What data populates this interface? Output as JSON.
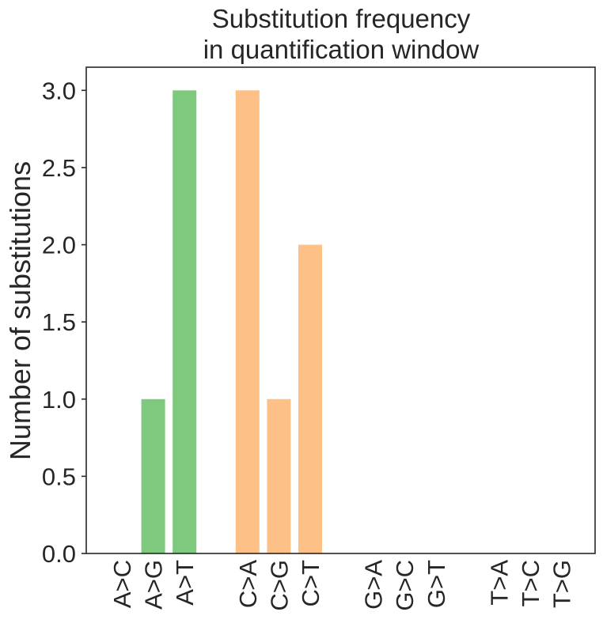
{
  "chart_data": {
    "type": "bar",
    "title_lines": [
      "Substitution frequency",
      "in quantification window"
    ],
    "xlabel": "",
    "ylabel": "Number of substitutions",
    "ylim": [
      0,
      3.15
    ],
    "yticks": [
      "0.0",
      "0.5",
      "1.0",
      "1.5",
      "2.0",
      "2.5",
      "3.0"
    ],
    "ytick_values": [
      0,
      0.5,
      1.0,
      1.5,
      2.0,
      2.5,
      3.0
    ],
    "grid": false,
    "bars": [
      {
        "category": "A>C",
        "value": 0,
        "group": "A",
        "color": "#7fc97f"
      },
      {
        "category": "A>G",
        "value": 1,
        "group": "A",
        "color": "#7fc97f"
      },
      {
        "category": "A>T",
        "value": 3,
        "group": "A",
        "color": "#7fc97f"
      },
      {
        "category": "C>A",
        "value": 3,
        "group": "C",
        "color": "#fdc086"
      },
      {
        "category": "C>G",
        "value": 1,
        "group": "C",
        "color": "#fdc086"
      },
      {
        "category": "C>T",
        "value": 2,
        "group": "C",
        "color": "#fdc086"
      },
      {
        "category": "G>A",
        "value": 0,
        "group": "G",
        "color": "#beaed4"
      },
      {
        "category": "G>C",
        "value": 0,
        "group": "G",
        "color": "#beaed4"
      },
      {
        "category": "G>T",
        "value": 0,
        "group": "G",
        "color": "#beaed4"
      },
      {
        "category": "T>A",
        "value": 0,
        "group": "T",
        "color": "#ffff99"
      },
      {
        "category": "T>C",
        "value": 0,
        "group": "T",
        "color": "#ffff99"
      },
      {
        "category": "T>G",
        "value": 0,
        "group": "T",
        "color": "#ffff99"
      }
    ]
  }
}
